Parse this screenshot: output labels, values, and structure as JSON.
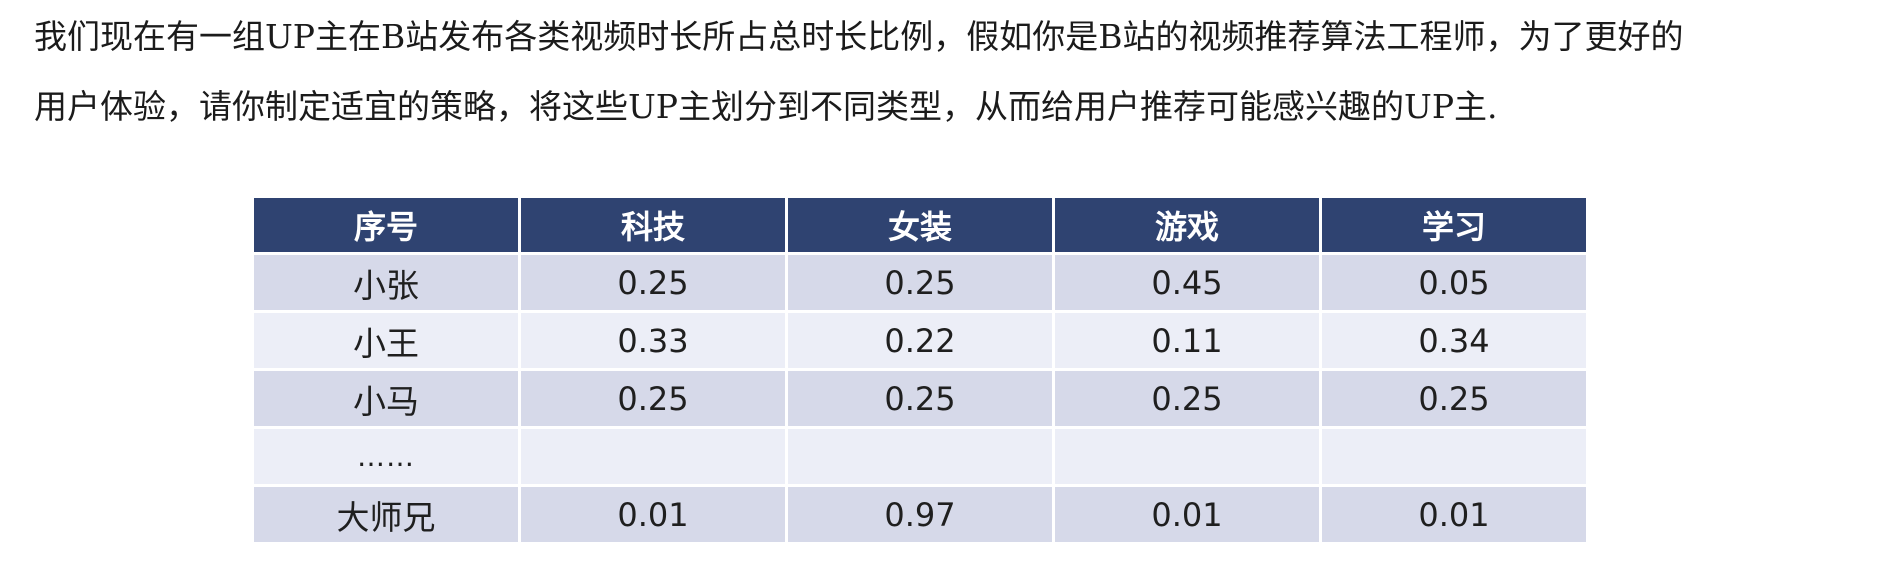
{
  "intro": {
    "line1": "我们现在有一组UP主在B站发布各类视频时长所占总时长比例，假如你是B站的视频推荐算法工程师，为了更好的",
    "line2": "用户体验，请你制定适宜的策略，将这些UP主划分到不同类型，从而给用户推荐可能感兴趣的UP主."
  },
  "table": {
    "headers": [
      "序号",
      "科技",
      "女装",
      "游戏",
      "学习"
    ],
    "rows": [
      [
        "小张",
        "0.25",
        "0.25",
        "0.45",
        "0.05"
      ],
      [
        "小王",
        "0.33",
        "0.22",
        "0.11",
        "0.34"
      ],
      [
        "小马",
        "0.25",
        "0.25",
        "0.25",
        "0.25"
      ],
      [
        "……",
        "",
        "",
        "",
        ""
      ],
      [
        "大师兄",
        "0.01",
        "0.97",
        "0.01",
        "0.01"
      ]
    ]
  },
  "colors": {
    "header_bg": "#2f4371",
    "row_dark": "#d6d9e9",
    "row_light": "#eceef7",
    "header_text": "#ffffff",
    "body_text": "#1f1f1f"
  }
}
